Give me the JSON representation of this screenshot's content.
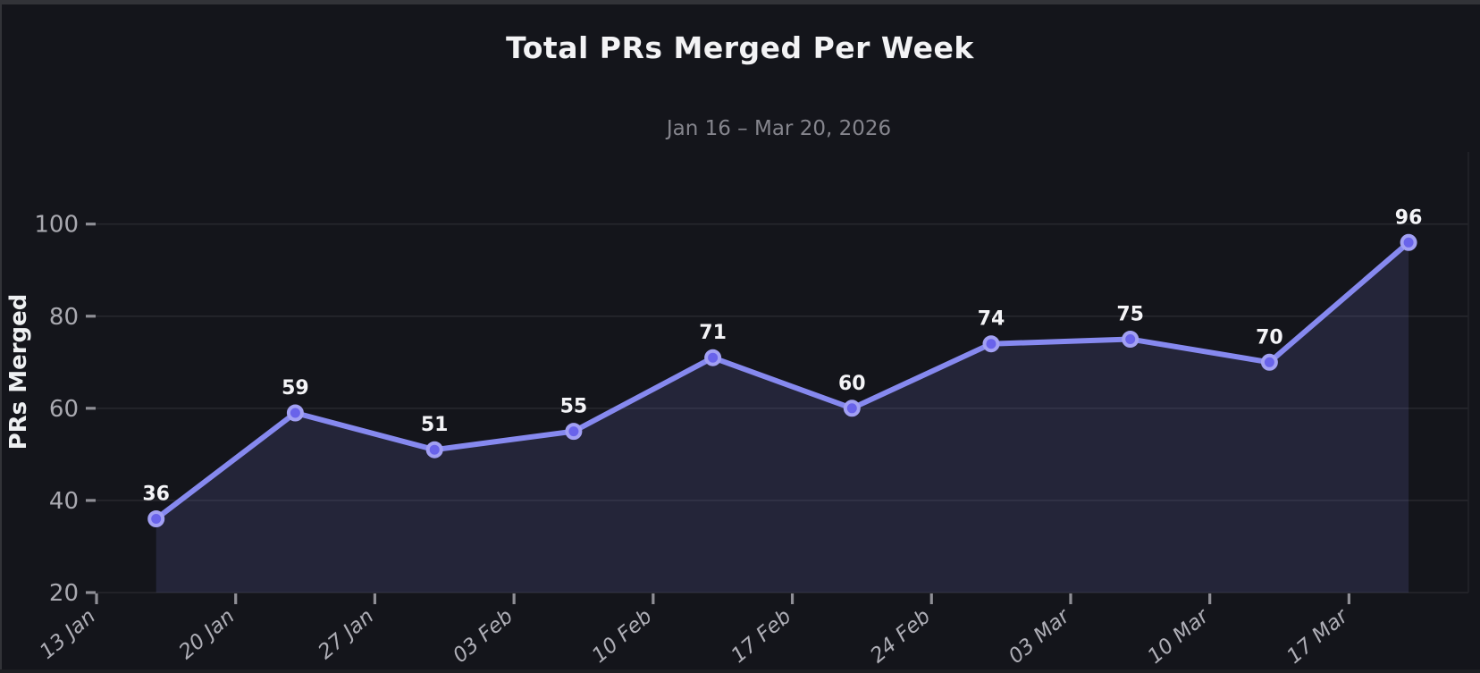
{
  "window": {
    "background_color": "#14151b",
    "top_border_color": "#323338",
    "left_border_color": "#323338",
    "bottom_border_color": "#1d1e22"
  },
  "chart": {
    "title": "Total PRs Merged Per Week",
    "subtitle": "Jan 16 – Mar 20, 2026",
    "ylabel": "PRs Merged"
  },
  "chart_data": {
    "type": "line",
    "title": "Total PRs Merged Per Week",
    "subtitle": "Jan 16 – Mar 20, 2026",
    "xlabel": "",
    "ylabel": "PRs Merged",
    "x_tick_labels": [
      "13 Jan",
      "20 Jan",
      "27 Jan",
      "03 Feb",
      "10 Feb",
      "17 Feb",
      "24 Feb",
      "03 Mar",
      "10 Mar",
      "17 Mar"
    ],
    "y_tick_labels": [
      "20",
      "40",
      "60",
      "80",
      "100"
    ],
    "ylim": [
      20,
      100
    ],
    "grid": "horizontal",
    "legend_position": "none",
    "marker_style": "circle",
    "area_filled_to_baseline": true,
    "point_labels_shown": true,
    "series": [
      {
        "name": "PRs Merged",
        "x_dates": [
          "Jan 16",
          "Jan 23",
          "Jan 30",
          "Feb 06",
          "Feb 13",
          "Feb 20",
          "Feb 27",
          "Mar 06",
          "Mar 13",
          "Mar 20"
        ],
        "x_offset_weeks_from_first_tick": 0.4286,
        "values": [
          36,
          59,
          51,
          55,
          71,
          60,
          74,
          75,
          70,
          96
        ]
      }
    ],
    "colors": {
      "line": "#8689ef",
      "marker_fill": "#6963ea",
      "marker_ring": "#a2a0f3",
      "area_fill": "rgba(134,137,239,0.14)",
      "gridline": "#26272d",
      "right_spine": "#222329",
      "tick_mark": "#8f8f96",
      "y_tick_text": "#a9a9b0",
      "x_tick_text": "#aeaeb6",
      "point_label_text": "#f4f4f7",
      "title_text": "#f3f3f5",
      "subtitle_text": "#85858d",
      "ylabel_text": "#eef0f2",
      "background": "#14151b"
    }
  }
}
